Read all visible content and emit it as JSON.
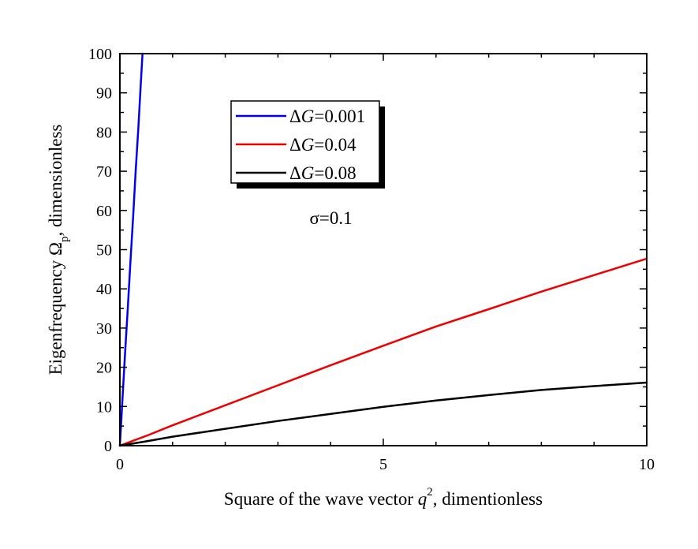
{
  "chart_data": {
    "type": "line",
    "title": "",
    "xlabel": {
      "prefix": "Square of the wave vector ",
      "var": "q",
      "sup": "2",
      "suffix": ", dimentionless"
    },
    "ylabel": {
      "prefix": "Eigenfrequency Ω",
      "sub": "p",
      "suffix": ", dimensionless"
    },
    "xlim": [
      0,
      10
    ],
    "ylim": [
      0,
      100
    ],
    "x_major_ticks": [
      0,
      5,
      10
    ],
    "x_tick_labels": [
      "0",
      "5",
      "10"
    ],
    "x_minor_ticks": [
      1,
      2,
      3,
      4,
      6,
      7,
      8,
      9
    ],
    "y_major_ticks": [
      0,
      10,
      20,
      30,
      40,
      50,
      60,
      70,
      80,
      90,
      100
    ],
    "y_tick_labels": [
      "0",
      "10",
      "20",
      "30",
      "40",
      "50",
      "60",
      "70",
      "80",
      "90",
      "100"
    ],
    "y_minor_ticks": [
      5,
      15,
      25,
      35,
      45,
      55,
      65,
      75,
      85,
      95
    ],
    "grid": false,
    "legend_position": "top-center",
    "series": [
      {
        "name_prefix": "Δ",
        "name_var": "G",
        "name_value": "=0.001",
        "color": "#0000ee",
        "x": [
          0,
          0.05,
          0.1,
          0.15,
          0.2,
          0.25,
          0.3,
          0.35,
          0.4,
          0.43
        ],
        "y": [
          0,
          12,
          24,
          35,
          47,
          58,
          70,
          81,
          93,
          100
        ]
      },
      {
        "name_prefix": "Δ",
        "name_var": "G",
        "name_value": "=0.04",
        "color": "#ee0000",
        "x": [
          0,
          0.5,
          1,
          2,
          3,
          4,
          5,
          6,
          7,
          8,
          9,
          10
        ],
        "y": [
          0,
          2.5,
          5.2,
          10.3,
          15.4,
          20.5,
          25.5,
          30.4,
          34.8,
          39.3,
          43.5,
          47.7
        ]
      },
      {
        "name_prefix": "Δ",
        "name_var": "G",
        "name_value": "=0.08",
        "color": "#000000",
        "x": [
          0,
          0.5,
          1,
          2,
          3,
          4,
          5,
          6,
          7,
          8,
          9,
          10
        ],
        "y": [
          0,
          1.1,
          2.3,
          4.3,
          6.3,
          8.1,
          9.9,
          11.5,
          12.9,
          14.2,
          15.2,
          16.1
        ]
      }
    ],
    "annotations": [
      {
        "text": "σ=0.1",
        "x": 3.6,
        "y": 56.5
      }
    ]
  }
}
